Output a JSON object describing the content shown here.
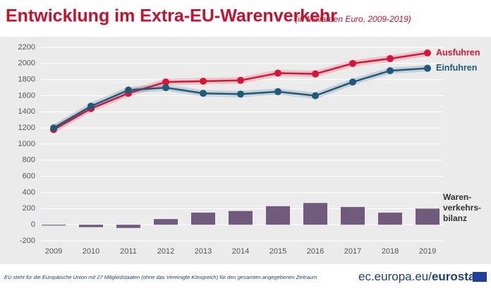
{
  "chart_data": {
    "type": "combo",
    "title": "Entwicklung im Extra-EU-Warenverkehr",
    "subtitle": "(in Milliarden Euro, 2009-2019)",
    "categories": [
      "2009",
      "2010",
      "2011",
      "2012",
      "2013",
      "2014",
      "2015",
      "2016",
      "2017",
      "2018",
      "2019"
    ],
    "series": [
      {
        "name": "Ausfuhren",
        "type": "line",
        "color": "#d7153a",
        "values": [
          1180,
          1440,
          1630,
          1770,
          1780,
          1790,
          1880,
          1870,
          2000,
          2060,
          2130
        ]
      },
      {
        "name": "Einfuhren",
        "type": "line",
        "color": "#1f5a7a",
        "values": [
          1200,
          1470,
          1670,
          1700,
          1630,
          1620,
          1650,
          1600,
          1770,
          1910,
          1940
        ]
      },
      {
        "name": "Waren-\nverkehrs-\nbilanz",
        "type": "bar",
        "color": "#715b7d",
        "values": [
          -10,
          -30,
          -40,
          70,
          150,
          170,
          230,
          270,
          220,
          150,
          200
        ]
      }
    ],
    "ylim": [
      -200,
      2200
    ],
    "yticks": [
      -200,
      0,
      200,
      400,
      600,
      800,
      1000,
      1200,
      1400,
      1600,
      1800,
      2000,
      2200
    ],
    "grid": true,
    "footnote": "EU steht für die Europäische Union mit 27 Mitgliedstaaten (ohne das Vereinigte Königreich) für den gesamten angegebenen Zeitraum",
    "source_domain": "ec.europa.eu/",
    "source_brand": "eurostat"
  }
}
